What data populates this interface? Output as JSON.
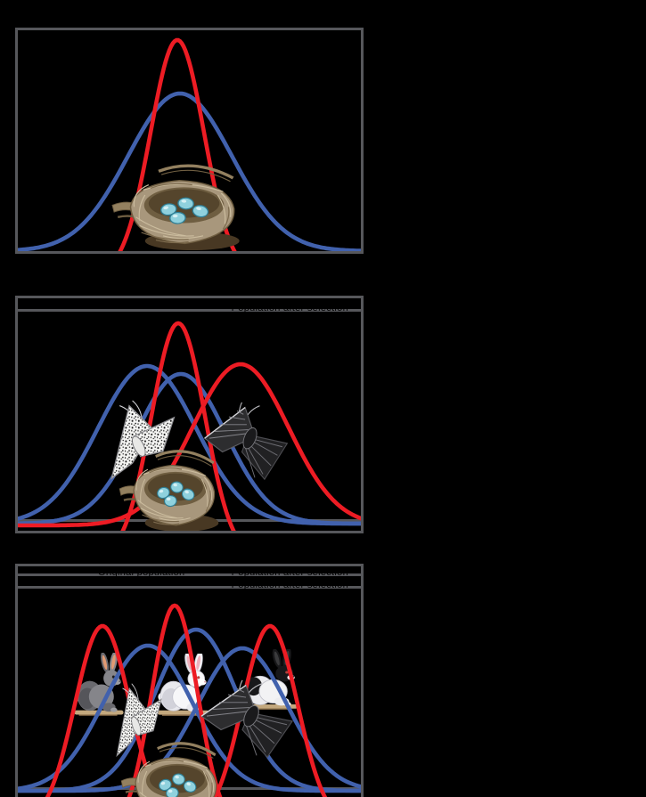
{
  "figure": {
    "background_color": "#000000",
    "frame_color": "#56575b",
    "series_colors": {
      "original_population_blue": "#4161ad",
      "population_after_selection_red": "#ed1c24"
    },
    "egg_color": "#8fd1dd",
    "panels": [
      {
        "name": "stabilizing-selection",
        "illustrations": [
          "bird-nest-with-four-blue-eggs"
        ],
        "curves": [
          {
            "series": "original population",
            "color": "#4161ad",
            "center": 182,
            "sigma": 58,
            "peak_y": 71,
            "base_y": 248
          },
          {
            "series": "population after selection",
            "color": "#ed1c24",
            "center": 179,
            "sigma": 30,
            "peak_y": 11,
            "base_y": 275
          }
        ],
        "rules": []
      },
      {
        "name": "directional-selection",
        "illustrations": [
          "light-peppered-moth",
          "dark-peppered-moth",
          "bird-nest-with-four-blue-eggs"
        ],
        "curves": [
          {
            "series": "original population",
            "color": "#4161ad",
            "center": 145,
            "sigma": 55,
            "peak_y": 76,
            "base_y": 253
          },
          {
            "series": "original population (overlay)",
            "color": "#4161ad",
            "center": 183,
            "sigma": 50,
            "peak_y": 85,
            "base_y": 253
          },
          {
            "series": "population after selection (overlay)",
            "color": "#ed1c24",
            "center": 180,
            "sigma": 30,
            "peak_y": 28,
            "base_y": 292
          },
          {
            "series": "population after selection",
            "color": "#ed1c24",
            "center": 250,
            "sigma": 54,
            "peak_y": 74,
            "base_y": 255
          }
        ],
        "rules": [
          {
            "y": 12,
            "label_right": "Population after selection"
          },
          {
            "y": 248
          }
        ]
      },
      {
        "name": "diversifying-selection",
        "illustrations": [
          "gray-rabbit",
          "white-rabbit",
          "black-and-white-rabbit",
          "light-peppered-moth",
          "dark-peppered-moth",
          "bird-nest-with-four-blue-eggs"
        ],
        "curves": [
          {
            "series": "original population",
            "color": "#4161ad",
            "center": 146,
            "sigma": 50,
            "peak_y": 89,
            "base_y": 252
          },
          {
            "series": "original population (overlay)",
            "color": "#4161ad",
            "center": 200,
            "sigma": 46,
            "peak_y": 71,
            "base_y": 252
          },
          {
            "series": "original population (overlay 2)",
            "color": "#4161ad",
            "center": 252,
            "sigma": 50,
            "peak_y": 92,
            "base_y": 252
          },
          {
            "series": "population after selection (left peak)",
            "color": "#ed1c24",
            "center": 95,
            "sigma": 31,
            "peak_y": 67,
            "base_y": 290
          },
          {
            "series": "population after selection (center overlay)",
            "color": "#ed1c24",
            "center": 176,
            "sigma": 26,
            "peak_y": 44,
            "base_y": 296
          },
          {
            "series": "population after selection (right peak)",
            "color": "#ed1c24",
            "center": 283,
            "sigma": 31,
            "peak_y": 67,
            "base_y": 290
          }
        ],
        "rules": [
          {
            "y": 8,
            "label_left": "Original population",
            "label_right": "Population after selection"
          },
          {
            "y": 22,
            "label_right": "Population after selection"
          },
          {
            "y": 248
          }
        ]
      }
    ]
  }
}
